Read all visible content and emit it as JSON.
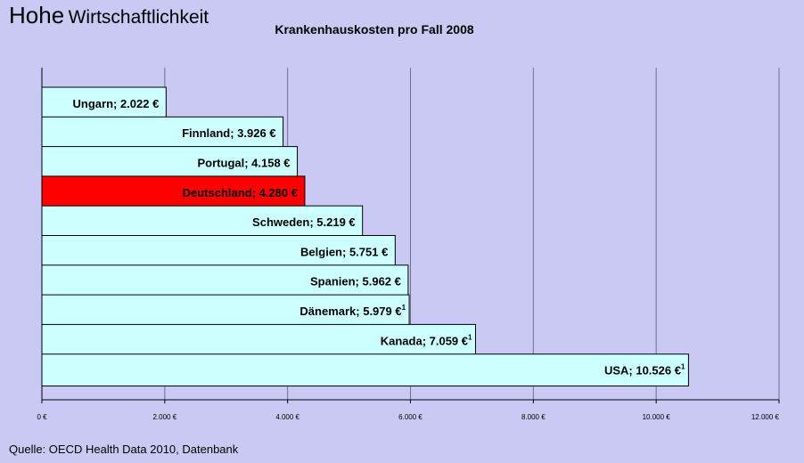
{
  "page": {
    "title_word1": "Hohe",
    "title_word2": "Wirtschaftlichkeit",
    "source": "Quelle: OECD Health Data 2010, Datenbank"
  },
  "colors": {
    "background": "#c9c9f3",
    "bar": "#ccffff",
    "highlight": "#ff0000",
    "gridline": "#6f6f8f"
  },
  "chart_data": {
    "type": "bar",
    "orientation": "horizontal",
    "title": "Krankenhauskosten pro Fall 2008",
    "xlim": [
      0,
      12000
    ],
    "ticks": [
      0,
      2000,
      4000,
      6000,
      8000,
      10000,
      12000
    ],
    "tick_labels": [
      "0 €",
      "2.000 €",
      "4.000 €",
      "6.000 €",
      "8.000 €",
      "10.000 €",
      "12.000 €"
    ],
    "grid": true,
    "categories": [
      "Ungarn",
      "Finnland",
      "Portugal",
      "Deutschland",
      "Schweden",
      "Belgien",
      "Spanien",
      "Dänemark",
      "Kanada",
      "USA"
    ],
    "values": [
      2022,
      3926,
      4158,
      4280,
      5219,
      5751,
      5962,
      5979,
      7059,
      10526
    ],
    "bar_labels": [
      "Ungarn; 2.022 €",
      "Finnland; 3.926 €",
      "Portugal; 4.158 €",
      "Deutschland; 4.280 €",
      "Schweden; 5.219 €",
      "Belgien; 5.751 €",
      "Spanien; 5.962 €",
      "Dänemark; 5.979 €",
      "Kanada; 7.059 €",
      "USA; 10.526 €"
    ],
    "footnote_marks": [
      "",
      "",
      "",
      "",
      "",
      "",
      "",
      "1",
      "1",
      "1"
    ],
    "highlighted": [
      "Deutschland"
    ]
  }
}
